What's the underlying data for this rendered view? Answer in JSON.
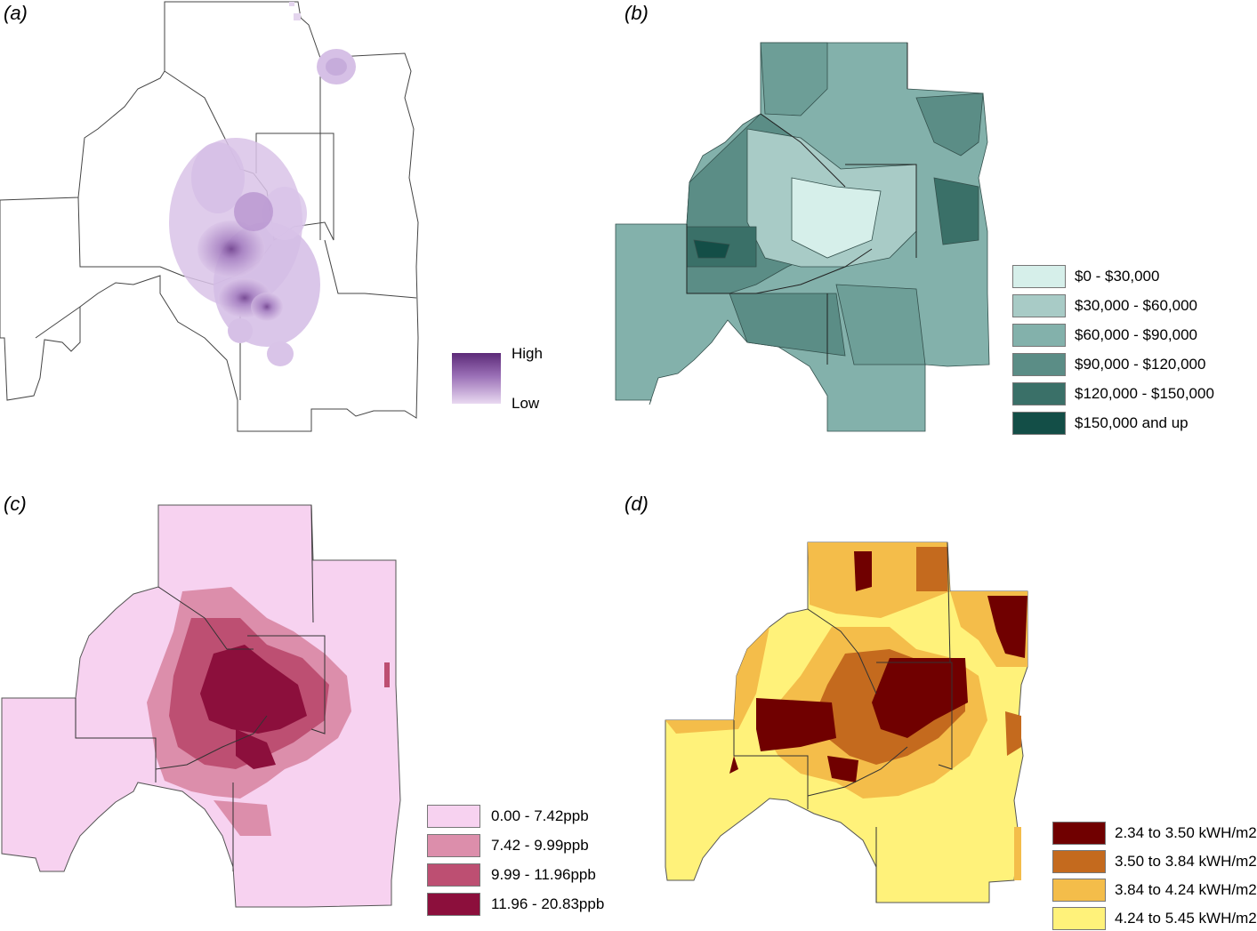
{
  "panels": {
    "a": {
      "label": "(a)",
      "legend": {
        "high": "High",
        "low": "Low",
        "colors": [
          "#5c2a78",
          "#e9d9f1"
        ]
      }
    },
    "b": {
      "label": "(b)",
      "legend": [
        {
          "label": "$0 - $30,000",
          "color": "#d6efea"
        },
        {
          "label": "$30,000 - $60,000",
          "color": "#a8cbc6"
        },
        {
          "label": "$60,000 - $90,000",
          "color": "#83b1ab"
        },
        {
          "label": "$90,000 - $120,000",
          "color": "#5b8d86"
        },
        {
          "label": "$120,000 - $150,000",
          "color": "#3a7068"
        },
        {
          "label": "$150,000 and up",
          "color": "#134e47"
        }
      ]
    },
    "c": {
      "label": "(c)",
      "legend": [
        {
          "label": "0.00 - 7.42ppb",
          "color": "#f7d2f0"
        },
        {
          "label": "7.42 - 9.99ppb",
          "color": "#dc8eab"
        },
        {
          "label": "9.99 - 11.96ppb",
          "color": "#bd4f72"
        },
        {
          "label": "11.96 - 20.83ppb",
          "color": "#8c0f3c"
        }
      ]
    },
    "d": {
      "label": "(d)",
      "legend": [
        {
          "label": "2.34 to 3.50 kWH/m2",
          "color": "#700000"
        },
        {
          "label": "3.50 to 3.84 kWH/m2",
          "color": "#c46a1e"
        },
        {
          "label": "3.84 to 4.24 kWH/m2",
          "color": "#f4bd4a"
        },
        {
          "label": "4.24 to 5.45 kWH/m2",
          "color": "#fff27a"
        }
      ]
    }
  }
}
